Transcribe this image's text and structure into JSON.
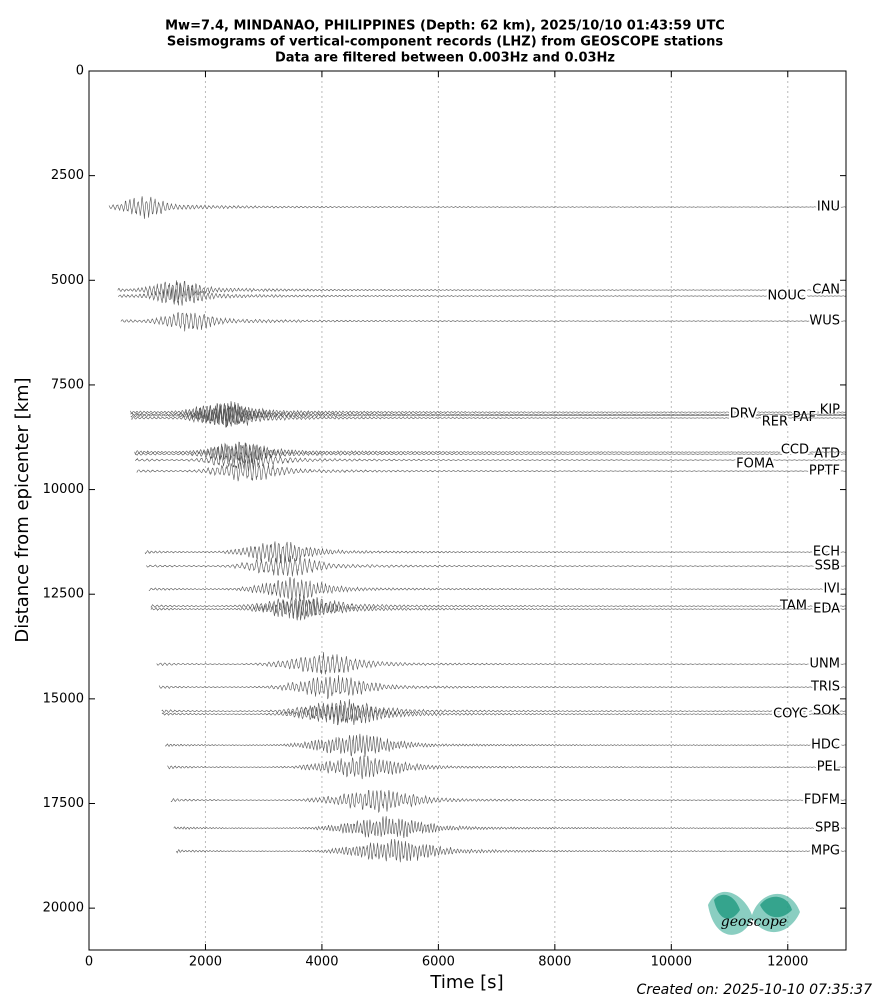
{
  "chart_data": {
    "type": "seismogram",
    "title": [
      "Mw=7.4, MINDANAO, PHILIPPINES (Depth: 62 km), 2025/10/10 01:43:59 UTC",
      "Seismograms of vertical-component records (LHZ) from GEOSCOPE stations",
      "Data are filtered between 0.003Hz and 0.03Hz"
    ],
    "x_label": "Time [s]",
    "y_label": "Distance from epicenter [km]",
    "xlim": [
      0,
      13000
    ],
    "xticks": [
      0,
      2000,
      4000,
      6000,
      8000,
      10000,
      12000
    ],
    "ylim": [
      21000,
      0
    ],
    "yticks": [
      0,
      2500,
      5000,
      7500,
      10000,
      12500,
      15000,
      17500,
      20000
    ],
    "grid": true,
    "color": "#555555",
    "series": [
      {
        "name": "INU",
        "values": [
          3250
        ]
      },
      {
        "name": "CAN",
        "values": [
          5233
        ]
      },
      {
        "name": "NOUC",
        "values": [
          5376
        ]
      },
      {
        "name": "WUS",
        "values": [
          5974
        ]
      },
      {
        "name": "KIP",
        "values": [
          8150
        ]
      },
      {
        "name": "PAF",
        "values": [
          8230
        ]
      },
      {
        "name": "RER",
        "values": [
          8290
        ]
      },
      {
        "name": "DRV",
        "values": [
          8200
        ]
      },
      {
        "name": "ATD",
        "values": [
          9152
        ]
      },
      {
        "name": "CCD",
        "values": [
          9104
        ]
      },
      {
        "name": "FOMA",
        "values": [
          9295
        ]
      },
      {
        "name": "PPTF",
        "values": [
          9558
        ]
      },
      {
        "name": "ECH",
        "values": [
          11493
        ]
      },
      {
        "name": "SSB",
        "values": [
          11828
        ]
      },
      {
        "name": "IVI",
        "values": [
          12378
        ]
      },
      {
        "name": "TAM",
        "values": [
          12784
        ]
      },
      {
        "name": "EDA",
        "values": [
          12855
        ]
      },
      {
        "name": "UNM",
        "values": [
          14170
        ]
      },
      {
        "name": "TRIS",
        "values": [
          14719
        ]
      },
      {
        "name": "SOK",
        "values": [
          15293
        ]
      },
      {
        "name": "COYC",
        "values": [
          15364
        ]
      },
      {
        "name": "HDC",
        "values": [
          16105
        ]
      },
      {
        "name": "PEL",
        "values": [
          16631
        ]
      },
      {
        "name": "FDFM",
        "values": [
          17419
        ]
      },
      {
        "name": "SPB",
        "values": [
          18088
        ]
      },
      {
        "name": "MPG",
        "values": [
          18638
        ]
      }
    ],
    "logo_text": "geoscope",
    "footer": "Created on: 2025-10-10 07:35:37"
  }
}
